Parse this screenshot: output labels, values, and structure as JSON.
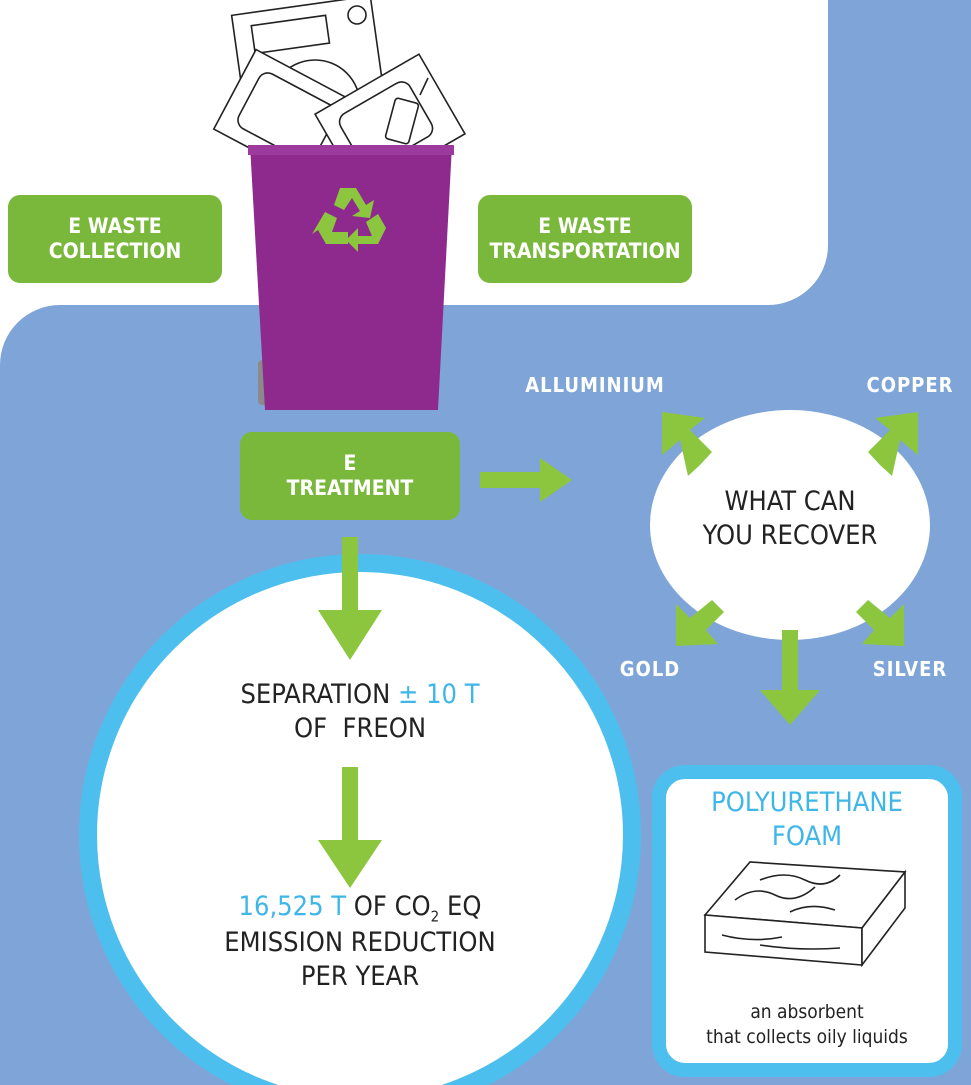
{
  "collection": {
    "lines": [
      "E WASTE",
      "COLLECTION"
    ]
  },
  "transportation": {
    "lines": [
      "E WASTE",
      "TRANSPORTATION"
    ]
  },
  "treatment": {
    "lines": [
      "E",
      "TREATMENT"
    ]
  },
  "recover": {
    "lines": [
      "WHAT CAN",
      "YOU RECOVER"
    ],
    "materials": [
      "ALLUMINIUM",
      "COPPER",
      "GOLD",
      "SILVER"
    ]
  },
  "separation": {
    "text": "SEPARATION",
    "amount": "± 10 T",
    "line2": "OF  FREON"
  },
  "emission": {
    "amount": "16,525 T",
    "text": "OF CO",
    "subscript": "2",
    "text_after": " EQ",
    "line2": "EMISSION REDUCTION",
    "line3": "PER YEAR"
  },
  "foam": {
    "title": [
      "POLYURETHANE",
      "FOAM"
    ],
    "caption": [
      "an absorbent",
      "that collects oily liquids"
    ]
  }
}
